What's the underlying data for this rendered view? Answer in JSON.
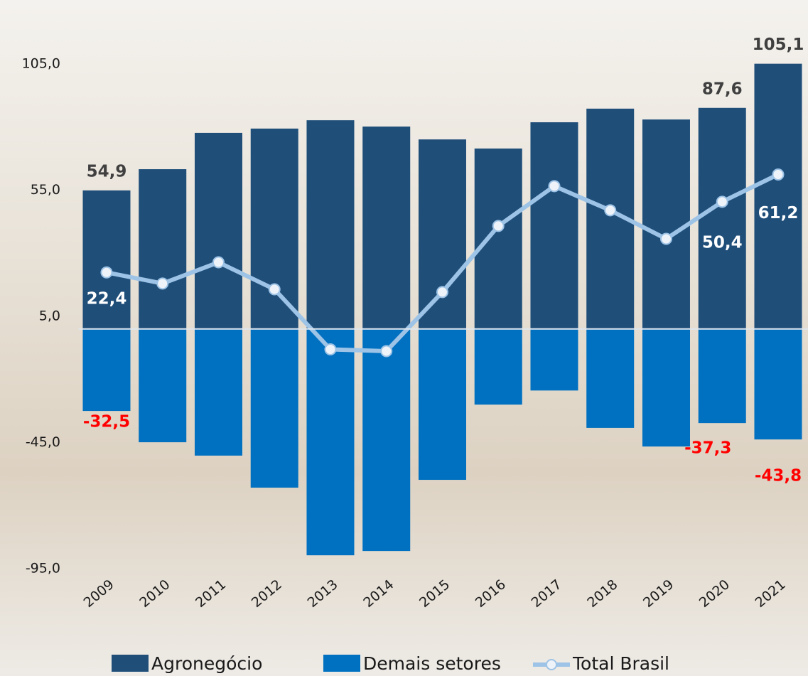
{
  "chart_data": {
    "type": "bar",
    "categories": [
      "2009",
      "2010",
      "2011",
      "2012",
      "2013",
      "2014",
      "2015",
      "2016",
      "2017",
      "2018",
      "2019",
      "2020",
      "2021"
    ],
    "series": [
      {
        "name": "Agronegócio",
        "color": "#1f4e79",
        "values": [
          54.9,
          63.3,
          77.7,
          79.4,
          82.7,
          80.2,
          75.1,
          71.5,
          81.9,
          87.3,
          83.0,
          87.6,
          105.1
        ],
        "value_labels": [
          "54,9",
          null,
          null,
          null,
          null,
          null,
          null,
          null,
          null,
          null,
          null,
          "87,6",
          "105,1"
        ]
      },
      {
        "name": "Demais setores",
        "color": "#0070c0",
        "values": [
          -32.5,
          -44.9,
          -50.2,
          -62.9,
          -89.7,
          -88.0,
          -59.8,
          -30.0,
          -24.4,
          -39.2,
          -46.6,
          -37.3,
          -43.8
        ],
        "value_labels": [
          "-32,5",
          null,
          null,
          null,
          null,
          null,
          null,
          null,
          null,
          null,
          null,
          "-37,3",
          "-43,8"
        ]
      },
      {
        "name": "Total Brasil",
        "color": "#9dc3e6",
        "type": "line",
        "values": [
          22.4,
          18.0,
          26.4,
          15.7,
          -8.1,
          -8.8,
          14.6,
          40.8,
          56.6,
          47.0,
          35.7,
          50.4,
          61.2
        ],
        "value_labels": [
          "22,4",
          null,
          null,
          null,
          null,
          null,
          null,
          null,
          null,
          null,
          null,
          "50,4",
          "61,2"
        ]
      }
    ],
    "ylim": [
      -95,
      105
    ],
    "yticks": [
      {
        "value": 105,
        "label": "105,0"
      },
      {
        "value": 55,
        "label": "55,0"
      },
      {
        "value": 5,
        "label": "5,0"
      },
      {
        "value": -45,
        "label": "-45,0"
      },
      {
        "value": -95,
        "label": "-95,0"
      }
    ],
    "legend": "bottom"
  }
}
